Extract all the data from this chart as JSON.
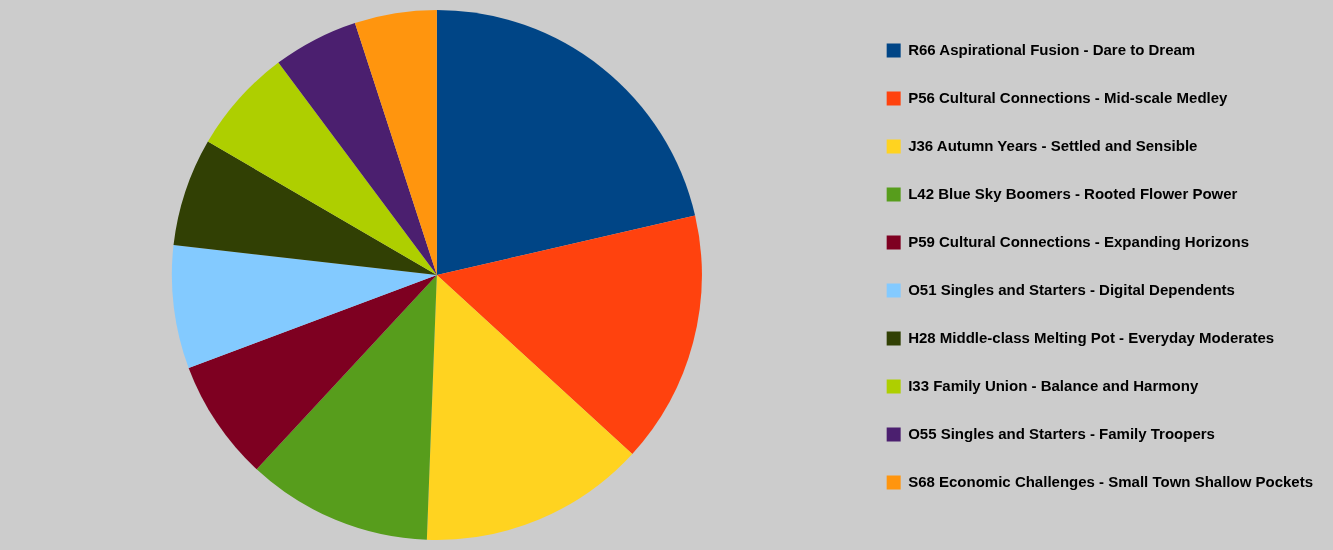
{
  "chart_data": {
    "type": "pie",
    "categories": [
      "R66 Aspirational Fusion - Dare to Dream",
      "P56 Cultural Connections - Mid-scale Medley",
      "J36 Autumn Years - Settled and Sensible",
      "L42 Blue Sky Boomers - Rooted Flower Power",
      "P59 Cultural Connections - Expanding Horizons",
      "O51 Singles and Starters - Digital Dependents",
      "H28 Middle-class Melting Pot - Everyday Moderates",
      "I33 Family Union - Balance and Harmony",
      "O55 Singles and Starters - Family Troopers",
      "S68 Economic Challenges - Small Town Shallow Pockets"
    ],
    "values": [
      21.4,
      15.4,
      13.8,
      11.3,
      7.4,
      7.5,
      6.6,
      6.4,
      5.2,
      5.0
    ],
    "colors": [
      "#004586",
      "#ff420e",
      "#ffd320",
      "#579d1c",
      "#7e0021",
      "#83caff",
      "#314004",
      "#aecf00",
      "#4b1f6f",
      "#ff950e"
    ],
    "legend": "right"
  }
}
